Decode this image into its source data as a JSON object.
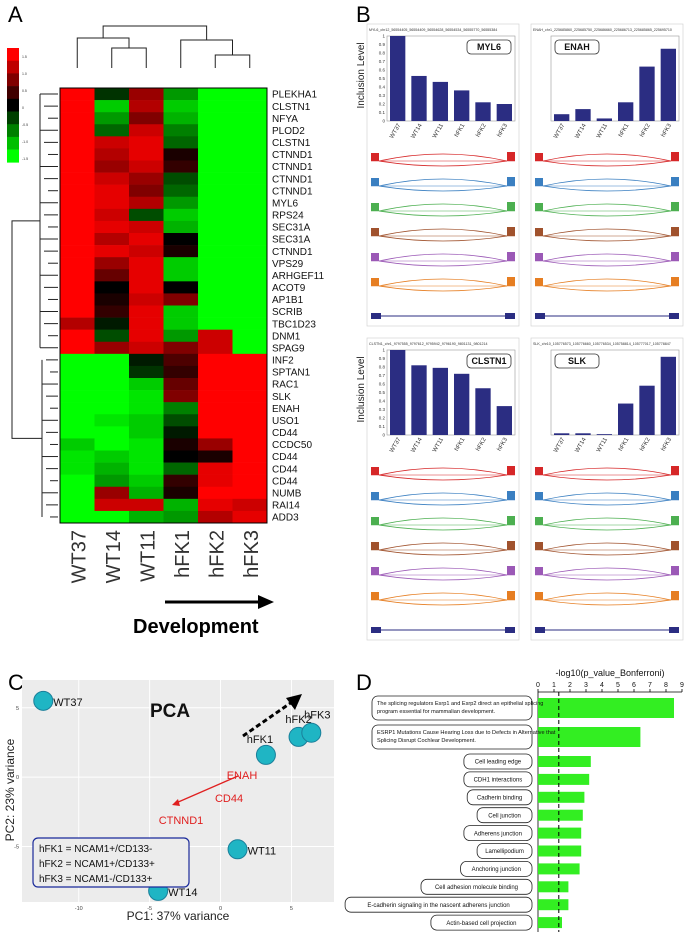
{
  "panel_letters": [
    "A",
    "B",
    "C",
    "D"
  ],
  "heatmap": {
    "genes": [
      "PLEKHA1",
      "CLSTN1",
      "NFYA",
      "PLOD2",
      "CLSTN1",
      "CTNND1",
      "CTNND1",
      "CTNND1",
      "CTNND1",
      "MYL6",
      "RPS24",
      "SEC31A",
      "SEC31A",
      "CTNND1",
      "VPS29",
      "ARHGEF11",
      "ACOT9",
      "AP1B1",
      "SCRIB",
      "TBC1D23",
      "DNM1",
      "SPAG9",
      "INF2",
      "SPTAN1",
      "RAC1",
      "SLK",
      "ENAH",
      "USO1",
      "CD44",
      "CCDC50",
      "CD44",
      "CD44",
      "CD44",
      "NUMB",
      "RAI14",
      "ADD3"
    ],
    "samples": [
      "WT37",
      "WT14",
      "WT11",
      "hFK1",
      "hFK2",
      "hFK3"
    ],
    "values": [
      [
        1.0,
        -0.2,
        0.6,
        -0.6,
        -1.0,
        -1.0
      ],
      [
        1.0,
        -0.8,
        0.7,
        -0.8,
        -1.0,
        -1.0
      ],
      [
        1.0,
        -0.6,
        0.5,
        -0.7,
        -1.0,
        -1.0
      ],
      [
        1.0,
        -0.4,
        0.8,
        -0.5,
        -1.0,
        -1.0
      ],
      [
        1.0,
        0.8,
        0.9,
        -0.4,
        -1.0,
        -1.0
      ],
      [
        1.0,
        0.7,
        0.9,
        0.1,
        -1.0,
        -1.0
      ],
      [
        1.0,
        0.6,
        0.8,
        0.2,
        -1.0,
        -1.0
      ],
      [
        1.0,
        0.8,
        0.6,
        -0.3,
        -1.0,
        -1.0
      ],
      [
        1.0,
        0.9,
        0.5,
        -0.4,
        -1.0,
        -1.0
      ],
      [
        1.0,
        0.9,
        0.7,
        -0.6,
        -1.0,
        -1.0
      ],
      [
        1.0,
        0.8,
        -0.3,
        -0.8,
        -1.0,
        -1.0
      ],
      [
        1.0,
        0.9,
        0.8,
        -0.7,
        -1.0,
        -1.0
      ],
      [
        1.0,
        0.7,
        0.9,
        0.0,
        -1.0,
        -1.0
      ],
      [
        1.0,
        0.9,
        0.8,
        0.1,
        -1.0,
        -1.0
      ],
      [
        1.0,
        0.6,
        0.9,
        -0.8,
        -1.0,
        -1.0
      ],
      [
        1.0,
        0.4,
        0.9,
        -0.8,
        -1.0,
        -1.0
      ],
      [
        1.0,
        0.0,
        0.9,
        0.0,
        -1.0,
        -1.0
      ],
      [
        1.0,
        0.1,
        0.8,
        0.5,
        -1.0,
        -1.0
      ],
      [
        1.0,
        0.2,
        0.9,
        -0.8,
        -1.0,
        -1.0
      ],
      [
        0.7,
        -0.1,
        0.9,
        -0.8,
        -1.0,
        -1.0
      ],
      [
        1.0,
        -0.3,
        0.9,
        -0.6,
        0.8,
        -1.0
      ],
      [
        1.0,
        0.6,
        0.8,
        0.5,
        0.8,
        -1.0
      ],
      [
        -1.0,
        -1.0,
        -0.1,
        0.3,
        1.0,
        1.0
      ],
      [
        -1.0,
        -1.0,
        -0.2,
        0.2,
        1.0,
        1.0
      ],
      [
        -1.0,
        -1.0,
        -0.8,
        0.4,
        1.0,
        1.0
      ],
      [
        -1.0,
        -1.0,
        -0.9,
        0.5,
        1.0,
        1.0
      ],
      [
        -1.0,
        -1.0,
        -0.9,
        -0.5,
        1.0,
        1.0
      ],
      [
        -1.0,
        -0.9,
        -0.8,
        -0.3,
        1.0,
        1.0
      ],
      [
        -1.0,
        -1.0,
        -0.8,
        -0.1,
        1.0,
        1.0
      ],
      [
        -0.8,
        -1.0,
        -0.9,
        0.1,
        0.6,
        1.0
      ],
      [
        -0.9,
        -0.8,
        -0.9,
        0.0,
        0.1,
        1.0
      ],
      [
        -0.9,
        -0.7,
        -0.9,
        -0.4,
        0.9,
        1.0
      ],
      [
        -1.0,
        -0.6,
        -0.8,
        0.2,
        0.9,
        1.0
      ],
      [
        -1.0,
        0.6,
        -0.7,
        0.1,
        1.0,
        1.0
      ],
      [
        -1.0,
        0.8,
        0.8,
        -0.7,
        0.9,
        0.8
      ],
      [
        -1.0,
        -1.0,
        -0.7,
        -0.6,
        0.7,
        0.9
      ]
    ],
    "arrow_label": "Development",
    "legend_ticks": [
      "1.5",
      "1.0",
      "0.5",
      "0",
      "-0.5",
      "-1.0",
      "-1.5"
    ]
  },
  "sashimi": [
    {
      "gene": "MYL6",
      "header": "MYL6_chr12_56554405_56554409_56554628_56554534_56555770_56555384",
      "levels": [
        1.0,
        0.53,
        0.46,
        0.36,
        0.22,
        0.2
      ]
    },
    {
      "gene": "ENAH",
      "header": "ENAH_chr1_225685860_225685750_225686660_225686713_225685865_225695710",
      "levels": [
        0.08,
        0.14,
        0.03,
        0.22,
        0.64,
        0.85
      ]
    },
    {
      "gene": "CLSTN1",
      "header": "CLSTN1_chr1_9797555_9797612_9795942_9796190_9801131_9801214",
      "levels": [
        1.0,
        0.82,
        0.79,
        0.72,
        0.55,
        0.34
      ]
    },
    {
      "gene": "SLK",
      "header": "SLK_chr10_105776573_105776660_105776534_105758814_105777017_105778847",
      "levels": [
        0.02,
        0.02,
        0.01,
        0.37,
        0.58,
        0.92
      ]
    }
  ],
  "sashimi_common": {
    "y_label": "Inclusion Level",
    "y_ticks": [
      "0",
      "0.1",
      "0.2",
      "0.3",
      "0.4",
      "0.5",
      "0.6",
      "0.7",
      "0.8",
      "0.9",
      "1"
    ],
    "samples": [
      "WT37",
      "WT14",
      "WT11",
      "hFK1",
      "hFK2",
      "hFK3"
    ],
    "bar_color": "#2b2d82",
    "track_colors": [
      "#d62728",
      "#3a7fc1",
      "#4caf50",
      "#a0522d",
      "#9b59b6",
      "#e67e22"
    ]
  },
  "chart_data": [
    {
      "type": "scatter",
      "title": "PCA",
      "xlabel": "PC1: 37% variance",
      "ylabel": "PC2: 23% variance",
      "xlim": [
        -14,
        8
      ],
      "ylim": [
        -9,
        7
      ],
      "x_ticks": [
        "-10",
        "-5",
        "0",
        "5"
      ],
      "y_ticks": [
        "-5",
        "0",
        "5"
      ],
      "points": [
        {
          "label": "WT37",
          "x": -12.5,
          "y": 5.5
        },
        {
          "label": "WT14",
          "x": -4.4,
          "y": -8.2
        },
        {
          "label": "WT11",
          "x": 1.2,
          "y": -5.2
        },
        {
          "label": "hFK1",
          "x": 3.2,
          "y": 1.6
        },
        {
          "label": "hFK2",
          "x": 5.5,
          "y": 2.9
        },
        {
          "label": "hFK3",
          "x": 6.4,
          "y": 3.2
        }
      ],
      "gene_labels": [
        "ENAH",
        "CD44",
        "CTNND1"
      ],
      "legend": [
        "hFK1 = NCAM1+/CD133-",
        "hFK2 = NCAM1+/CD133+",
        "hFK3 = NCAM1-/CD133+"
      ],
      "marker_color": "#1fb5c4"
    },
    {
      "type": "bar",
      "orientation": "horizontal",
      "title": "-log10(p_value_Bonferroni)",
      "xlim": [
        0,
        9
      ],
      "x_ticks": [
        "0",
        "1",
        "2",
        "3",
        "4",
        "5",
        "6",
        "7",
        "8",
        "9"
      ],
      "threshold": 1.3,
      "bar_color": "#33ee22",
      "categories": [
        "The splicing regulators Esrp1 and Esrp2 direct an epithelial splicing program essential for mammalian development.",
        "ESRP1 Mutations Cause Hearing Loss due to Defects in Alternative Splicing that Disrupt Cochlear Development.",
        "Cell leading edge",
        "CDH1 interactions",
        "Cadherin binding",
        "Cell junction",
        "Adherens junction",
        "Lamellipodium",
        "Anchoring junction",
        "Cell adhesion molecule binding",
        "E-cadherin signaling in the nascent adherens junction",
        "Actin-based cell projection"
      ],
      "values": [
        8.5,
        6.4,
        3.3,
        3.2,
        2.9,
        2.8,
        2.7,
        2.7,
        2.6,
        1.9,
        1.9,
        1.5
      ]
    }
  ]
}
